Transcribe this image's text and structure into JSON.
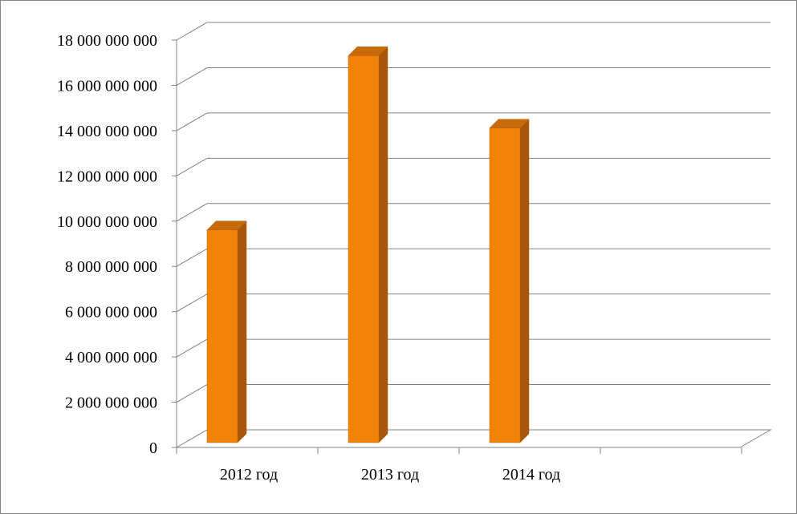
{
  "chart_data": {
    "type": "bar",
    "style": "3d-column",
    "title": "",
    "xlabel": "",
    "ylabel": "",
    "categories": [
      "2012 год",
      "2013 год",
      "2014 год",
      ""
    ],
    "series": [
      {
        "values": [
          9400000000,
          17100000000,
          13900000000,
          null
        ]
      }
    ],
    "ylim": [
      0,
      18000000000
    ],
    "yticks": [
      0,
      2000000000,
      4000000000,
      6000000000,
      8000000000,
      10000000000,
      12000000000,
      14000000000,
      16000000000,
      18000000000
    ],
    "ytick_labels": [
      "0",
      "2 000 000 000",
      "4 000 000 000",
      "6 000 000 000",
      "8 000 000 000",
      "10 000 000 000",
      "12 000 000 000",
      "14 000 000 000",
      "16 000 000 000",
      "18 000 000 000"
    ],
    "grid": true,
    "legend": "none",
    "colors": {
      "bar_front": "#F08308",
      "bar_side": "#A6570A",
      "bar_top": "#C96A0A",
      "bar_outline": "#B15E08",
      "gridline": "#808080",
      "frame": "#868686"
    }
  }
}
